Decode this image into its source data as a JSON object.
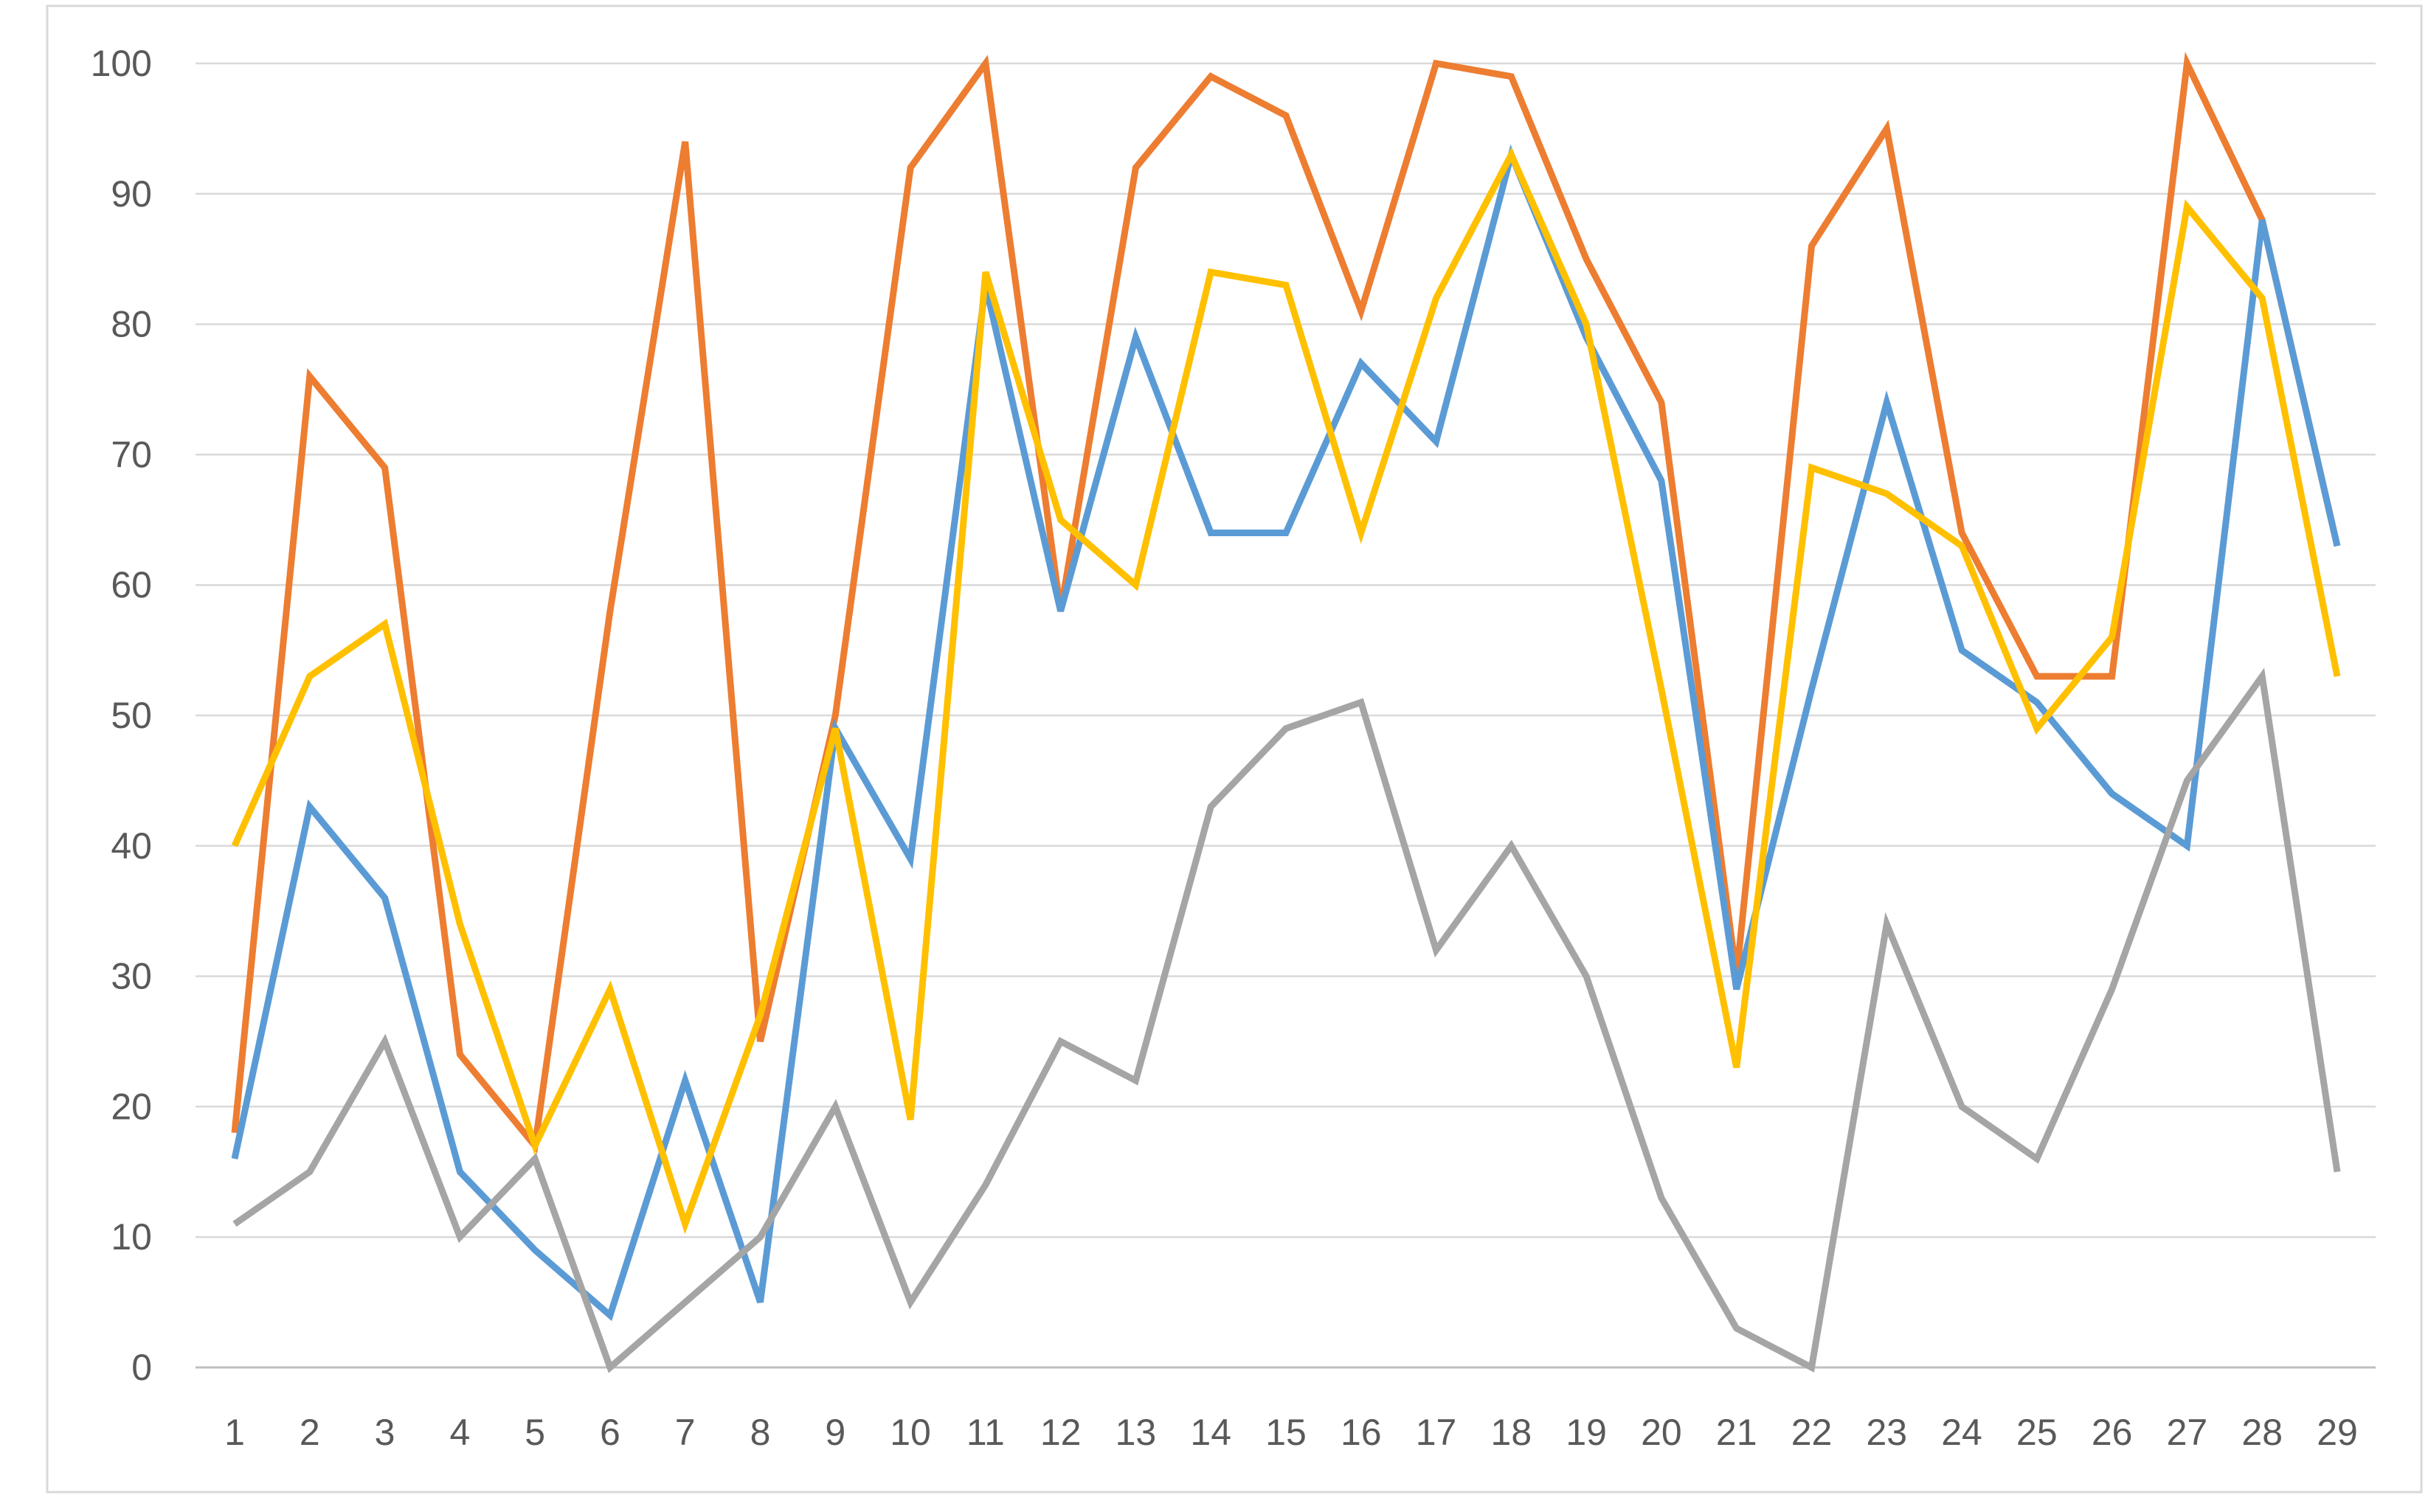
{
  "chart_data": {
    "type": "line",
    "title": "",
    "xlabel": "",
    "ylabel": "",
    "categories": [
      "1",
      "2",
      "3",
      "4",
      "5",
      "6",
      "7",
      "8",
      "9",
      "10",
      "11",
      "12",
      "13",
      "14",
      "15",
      "16",
      "17",
      "18",
      "19",
      "20",
      "21",
      "22",
      "23",
      "24",
      "25",
      "26",
      "27",
      "28",
      "29"
    ],
    "ylim": [
      0,
      100
    ],
    "yticks": [
      0,
      10,
      20,
      30,
      40,
      50,
      60,
      70,
      80,
      90,
      100
    ],
    "grid": true,
    "legend": "none",
    "series": [
      {
        "color": "#ED7D31",
        "values": [
          18,
          76,
          69,
          24,
          17,
          58,
          94,
          25,
          50,
          92,
          100,
          58,
          92,
          99,
          96,
          81,
          100,
          99,
          85,
          74,
          30,
          86,
          95,
          64,
          53,
          53,
          100,
          88,
          63
        ]
      },
      {
        "color": "#5B9BD5",
        "values": [
          16,
          43,
          36,
          15,
          9,
          4,
          22,
          5,
          49,
          39,
          83,
          58,
          79,
          64,
          64,
          77,
          71,
          93,
          79,
          68,
          29,
          52,
          74,
          55,
          51,
          44,
          40,
          88,
          63
        ]
      },
      {
        "color": "#FFC000",
        "values": [
          40,
          53,
          57,
          34,
          17,
          29,
          11,
          27,
          49,
          19,
          84,
          65,
          60,
          84,
          83,
          64,
          82,
          93,
          80,
          52,
          23,
          69,
          67,
          63,
          49,
          56,
          89,
          82,
          53
        ]
      },
      {
        "color": "#A5A5A5",
        "values": [
          11,
          15,
          25,
          10,
          16,
          0,
          5,
          10,
          20,
          5,
          14,
          25,
          22,
          43,
          49,
          51,
          32,
          40,
          30,
          13,
          3,
          0,
          34,
          20,
          16,
          29,
          45,
          53,
          15
        ]
      }
    ]
  }
}
